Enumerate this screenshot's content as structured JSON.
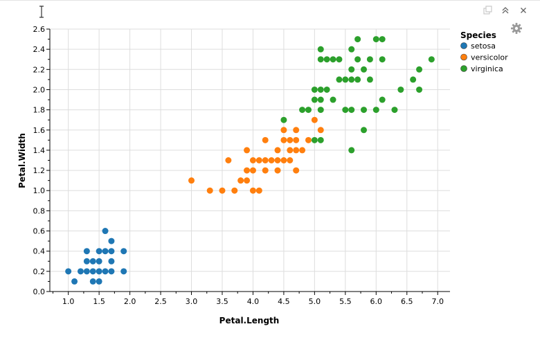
{
  "colors": {
    "setosa": "#1f77b4",
    "versicolor": "#ff7f0e",
    "virginica": "#2ca02c",
    "grid": "#dddddd",
    "axis": "#000000"
  },
  "toolbar": {
    "icons": [
      "copy-icon",
      "collapse-icon",
      "close-icon",
      "gear-icon"
    ]
  },
  "chart_data": {
    "type": "scatter",
    "title": "",
    "xlabel": "Petal.Length",
    "ylabel": "Petal.Width",
    "xlim": [
      0.7,
      7.2
    ],
    "ylim": [
      0.0,
      2.6
    ],
    "x_ticks": [
      "1.0",
      "1.5",
      "2.0",
      "2.5",
      "3.0",
      "3.5",
      "4.0",
      "4.5",
      "5.0",
      "5.5",
      "6.0",
      "6.5",
      "7.0"
    ],
    "y_ticks": [
      "0.0",
      "0.2",
      "0.4",
      "0.6",
      "0.8",
      "1.0",
      "1.2",
      "1.4",
      "1.6",
      "1.8",
      "2.0",
      "2.2",
      "2.4",
      "2.6"
    ],
    "grid": true,
    "legend": {
      "title": "Species",
      "placement": "top-right"
    },
    "series": [
      {
        "name": "setosa",
        "points": [
          [
            1.0,
            0.2
          ],
          [
            1.1,
            0.1
          ],
          [
            1.2,
            0.2
          ],
          [
            1.3,
            0.2
          ],
          [
            1.3,
            0.3
          ],
          [
            1.3,
            0.4
          ],
          [
            1.4,
            0.1
          ],
          [
            1.4,
            0.2
          ],
          [
            1.4,
            0.3
          ],
          [
            1.5,
            0.1
          ],
          [
            1.5,
            0.2
          ],
          [
            1.5,
            0.3
          ],
          [
            1.5,
            0.4
          ],
          [
            1.6,
            0.2
          ],
          [
            1.6,
            0.4
          ],
          [
            1.6,
            0.6
          ],
          [
            1.7,
            0.2
          ],
          [
            1.7,
            0.3
          ],
          [
            1.7,
            0.4
          ],
          [
            1.7,
            0.5
          ],
          [
            1.9,
            0.2
          ],
          [
            1.9,
            0.4
          ]
        ]
      },
      {
        "name": "versicolor",
        "points": [
          [
            3.0,
            1.1
          ],
          [
            3.3,
            1.0
          ],
          [
            3.5,
            1.0
          ],
          [
            3.6,
            1.3
          ],
          [
            3.7,
            1.0
          ],
          [
            3.8,
            1.1
          ],
          [
            3.9,
            1.1
          ],
          [
            3.9,
            1.2
          ],
          [
            3.9,
            1.4
          ],
          [
            4.0,
            1.0
          ],
          [
            4.0,
            1.2
          ],
          [
            4.0,
            1.3
          ],
          [
            4.1,
            1.0
          ],
          [
            4.1,
            1.3
          ],
          [
            4.2,
            1.2
          ],
          [
            4.2,
            1.3
          ],
          [
            4.2,
            1.5
          ],
          [
            4.3,
            1.3
          ],
          [
            4.4,
            1.2
          ],
          [
            4.4,
            1.3
          ],
          [
            4.4,
            1.4
          ],
          [
            4.5,
            1.3
          ],
          [
            4.5,
            1.5
          ],
          [
            4.5,
            1.6
          ],
          [
            4.6,
            1.3
          ],
          [
            4.6,
            1.4
          ],
          [
            4.6,
            1.5
          ],
          [
            4.7,
            1.2
          ],
          [
            4.7,
            1.4
          ],
          [
            4.7,
            1.5
          ],
          [
            4.7,
            1.6
          ],
          [
            4.8,
            1.4
          ],
          [
            4.9,
            1.5
          ],
          [
            5.0,
            1.7
          ],
          [
            5.1,
            1.6
          ]
        ]
      },
      {
        "name": "virginica",
        "points": [
          [
            4.5,
            1.7
          ],
          [
            4.8,
            1.8
          ],
          [
            4.9,
            1.8
          ],
          [
            5.0,
            1.5
          ],
          [
            5.0,
            1.9
          ],
          [
            5.0,
            2.0
          ],
          [
            5.1,
            1.5
          ],
          [
            5.1,
            1.8
          ],
          [
            5.1,
            1.9
          ],
          [
            5.1,
            2.0
          ],
          [
            5.1,
            2.3
          ],
          [
            5.1,
            2.4
          ],
          [
            5.2,
            2.0
          ],
          [
            5.2,
            2.3
          ],
          [
            5.3,
            1.9
          ],
          [
            5.3,
            2.3
          ],
          [
            5.4,
            2.1
          ],
          [
            5.4,
            2.3
          ],
          [
            5.5,
            1.8
          ],
          [
            5.5,
            2.1
          ],
          [
            5.6,
            1.4
          ],
          [
            5.6,
            1.8
          ],
          [
            5.6,
            2.1
          ],
          [
            5.6,
            2.2
          ],
          [
            5.6,
            2.4
          ],
          [
            5.7,
            2.1
          ],
          [
            5.7,
            2.3
          ],
          [
            5.7,
            2.5
          ],
          [
            5.8,
            1.6
          ],
          [
            5.8,
            1.8
          ],
          [
            5.8,
            2.2
          ],
          [
            5.9,
            2.1
          ],
          [
            5.9,
            2.3
          ],
          [
            6.0,
            1.8
          ],
          [
            6.0,
            2.5
          ],
          [
            6.1,
            1.9
          ],
          [
            6.1,
            2.3
          ],
          [
            6.1,
            2.5
          ],
          [
            6.3,
            1.8
          ],
          [
            6.4,
            2.0
          ],
          [
            6.6,
            2.1
          ],
          [
            6.7,
            2.0
          ],
          [
            6.7,
            2.2
          ],
          [
            6.9,
            2.3
          ]
        ]
      }
    ]
  }
}
